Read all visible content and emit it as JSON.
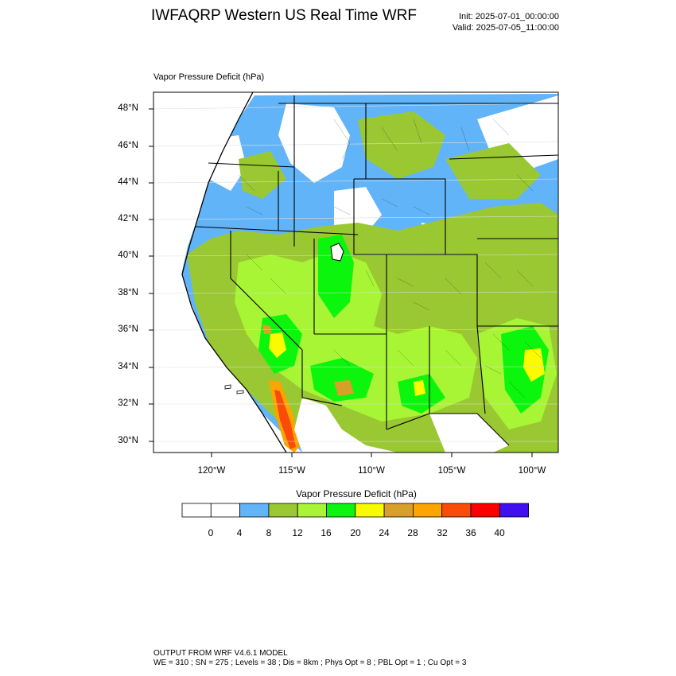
{
  "header": {
    "title": "IWFAQRP Western US Real Time WRF",
    "init": "Init: 2025-07-01_00:00:00",
    "valid": "Valid: 2025-07-05_11:00:00"
  },
  "map": {
    "field_label": "Vapor Pressure Deficit   (hPa)",
    "lat_labels": [
      "48°N",
      "46°N",
      "44°N",
      "42°N",
      "40°N",
      "38°N",
      "36°N",
      "34°N",
      "32°N",
      "30°N"
    ],
    "lon_labels": [
      "120°W",
      "115°W",
      "110°W",
      "105°W",
      "100°W"
    ]
  },
  "colorbar": {
    "title": "Vapor Pressure Deficit  (hPa)",
    "labels": [
      "0",
      "4",
      "8",
      "12",
      "16",
      "20",
      "24",
      "28",
      "32",
      "36",
      "40"
    ],
    "colors": [
      "#ffffff",
      "#ffffff",
      "#62b4f8",
      "#9ac832",
      "#a8f536",
      "#0cf50c",
      "#fafa00",
      "#d8a028",
      "#fca400",
      "#fa4c08",
      "#fa0000",
      "#4010f0"
    ]
  },
  "footer": {
    "line1": "OUTPUT FROM WRF V4.6.1 MODEL",
    "line2": "WE = 310 ; SN = 275 ; Levels = 38 ; Dis = 8km ; Phys Opt = 8 ; PBL Opt = 1 ; Cu Opt = 3"
  }
}
